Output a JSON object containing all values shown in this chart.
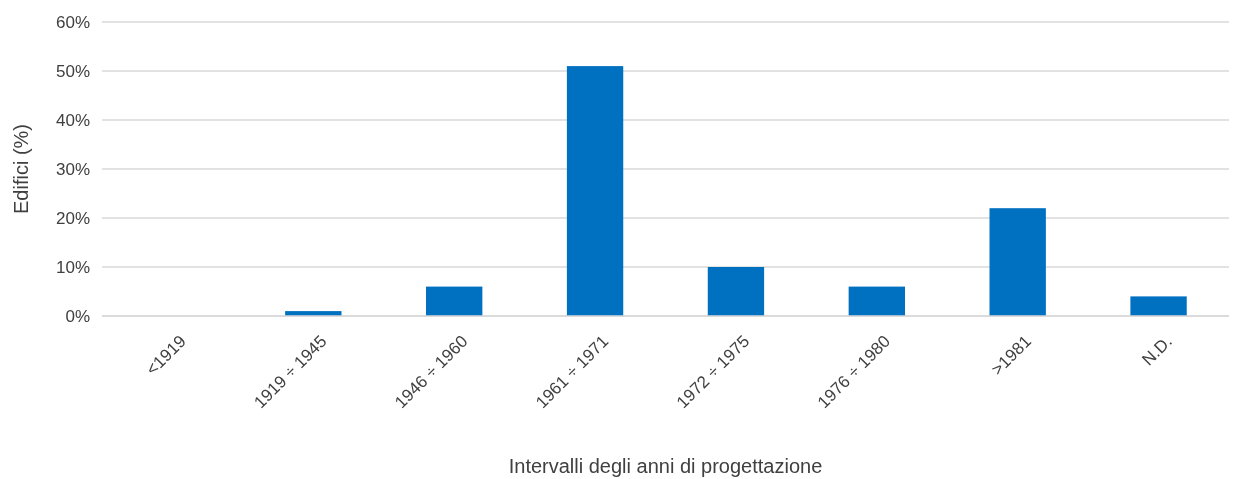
{
  "chart_data": {
    "type": "bar",
    "xlabel": "Intervalli degli anni di progettazione",
    "ylabel": "Edifici (%)",
    "categories": [
      "<1919",
      "1919 ÷ 1945",
      "1946 ÷ 1960",
      "1961 ÷ 1971",
      "1972 ÷ 1975",
      "1976 ÷ 1980",
      ">1981",
      "N.D."
    ],
    "values": [
      0,
      1,
      6,
      51,
      10,
      6,
      22,
      4
    ],
    "color": "#0070c0",
    "ylim": [
      0,
      60
    ],
    "yticks": [
      {
        "value": 0,
        "label": "0%"
      },
      {
        "value": 10,
        "label": "10%"
      },
      {
        "value": 20,
        "label": "20%"
      },
      {
        "value": 30,
        "label": "30%"
      },
      {
        "value": 40,
        "label": "40%"
      },
      {
        "value": 50,
        "label": "50%"
      },
      {
        "value": 60,
        "label": "60%"
      }
    ],
    "grid": "y"
  }
}
